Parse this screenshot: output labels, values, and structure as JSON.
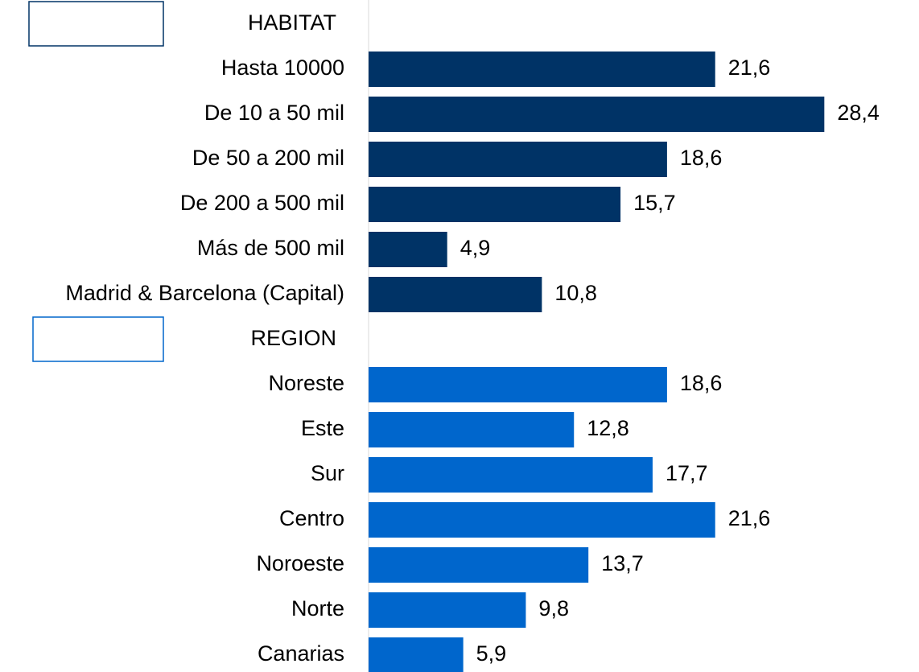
{
  "chart_data": {
    "type": "bar",
    "orientation": "horizontal",
    "categories": [
      "Hasta 10000",
      "De 10 a 50 mil",
      "De 50 a 200 mil",
      "De 200 a 500 mil",
      "Más de 500 mil",
      "Madrid & Barcelona (Capital)",
      "Noreste",
      "Este",
      "Sur",
      "Centro",
      "Noroeste",
      "Norte",
      "Canarias"
    ],
    "series": [
      {
        "name": "HABITAT",
        "color": "#003366",
        "values": [
          21.6,
          28.4,
          18.6,
          15.7,
          4.9,
          10.8,
          null,
          null,
          null,
          null,
          null,
          null,
          null
        ],
        "value_labels": [
          "21,6",
          "28,4",
          "18,6",
          "15,7",
          "4,9",
          "10,8",
          null,
          null,
          null,
          null,
          null,
          null,
          null
        ]
      },
      {
        "name": "REGION",
        "color": "#0066cc",
        "values": [
          null,
          null,
          null,
          null,
          null,
          null,
          18.6,
          12.8,
          17.7,
          21.6,
          13.7,
          9.8,
          5.9
        ],
        "value_labels": [
          null,
          null,
          null,
          null,
          null,
          null,
          "18,6",
          "12,8",
          "17,7",
          "21,6",
          "13,7",
          "9,8",
          "5,9"
        ]
      }
    ],
    "xlim": [
      0,
      34
    ]
  }
}
